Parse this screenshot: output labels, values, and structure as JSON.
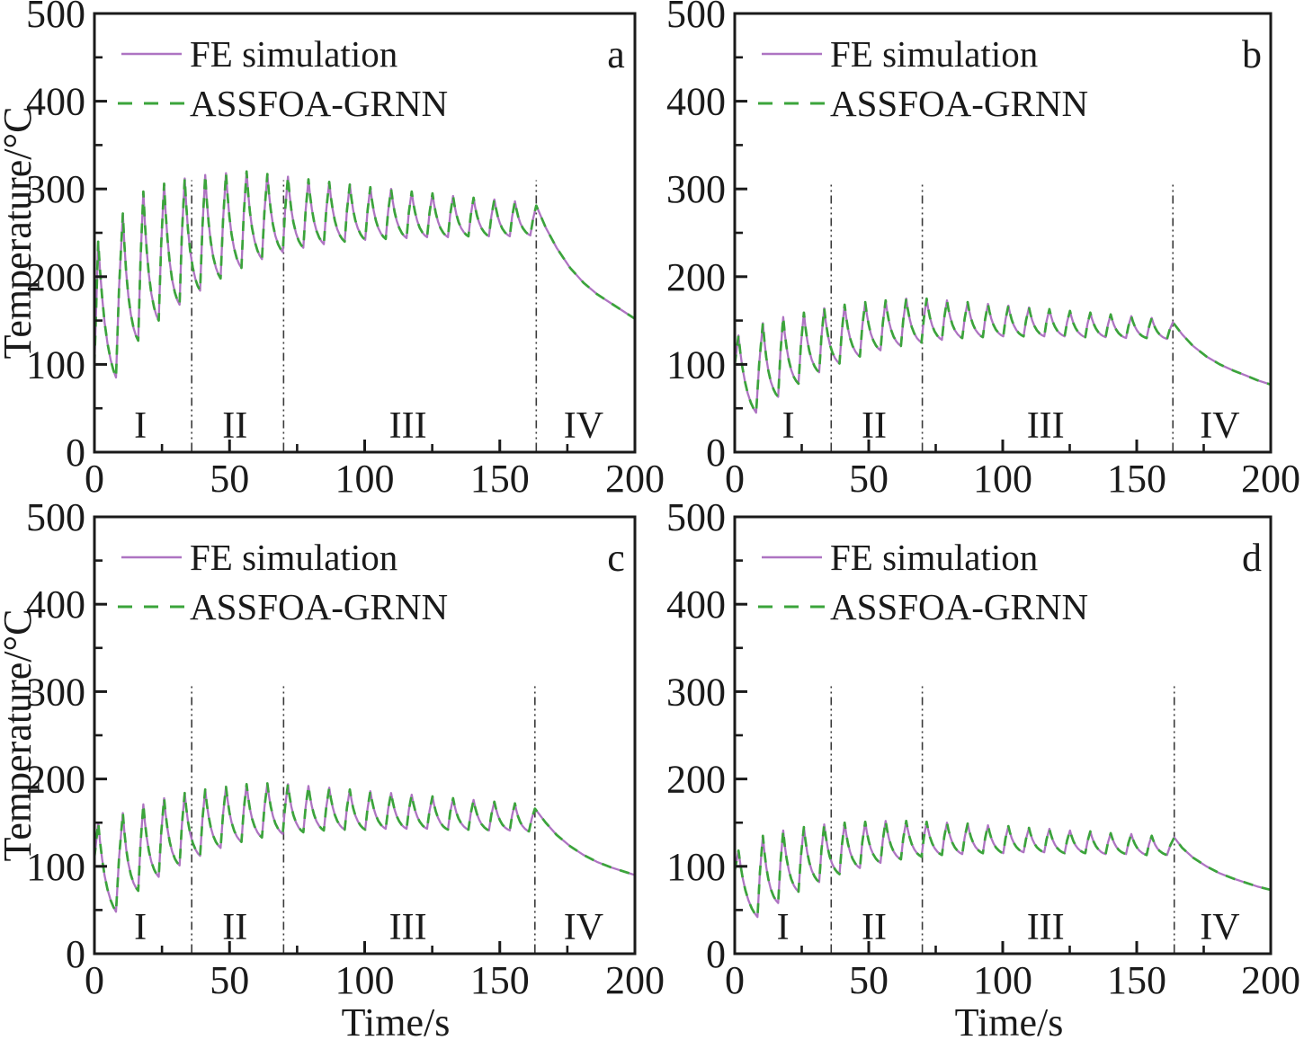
{
  "figure": {
    "description": "2x2 grid of temperature-time curves comparing FE simulation with ASSFOA-GRNN prediction",
    "xlabel": "Time/s",
    "ylabel": "Temperature/°C",
    "legend": [
      {
        "label": "FE simulation",
        "style": "solid",
        "color": "#ae74c2"
      },
      {
        "label": "ASSFOA-GRNN",
        "style": "dashed",
        "color": "#3ba43b"
      }
    ],
    "colors": {
      "fe_simulation": "#ae74c2",
      "assfoa_grnn": "#3ba43b",
      "frame": "#1a1a1a",
      "stage_boundary": "#3a3a3a"
    },
    "axes": {
      "xlim": [
        0,
        200
      ],
      "ylim": [
        0,
        500
      ],
      "xticks": [
        0,
        50,
        100,
        150,
        200
      ],
      "yticks": [
        0,
        100,
        200,
        300,
        400,
        500
      ],
      "x_minor_ticks": [
        25,
        75,
        125,
        175
      ],
      "y_minor_ticks": [
        50,
        150,
        250,
        350,
        450
      ],
      "grid": false
    },
    "shape": {
      "peak_times": [
        10.5,
        18.1,
        25.8,
        33.4,
        41.0,
        48.7,
        56.3,
        64.0,
        71.6,
        79.2,
        86.9,
        94.5,
        102.1,
        109.8,
        117.4,
        125.1,
        132.7,
        140.3,
        148.0,
        155.6
      ],
      "fall_duration_s": 5.7,
      "fall_exponent": 2.5,
      "spike_fall_exponent": 2.0
    }
  },
  "chart_data": [
    {
      "type": "line",
      "letter": "a",
      "xlabel": "",
      "ylabel": "Temperature/°C",
      "xlim": [
        0,
        200
      ],
      "ylim": [
        0,
        500
      ],
      "xticks": [
        0,
        50,
        100,
        150,
        200
      ],
      "yticks": [
        0,
        100,
        200,
        300,
        400,
        500
      ],
      "legend_position": "top-left",
      "series": [
        "FE simulation",
        "ASSFOA-GRNN"
      ],
      "series_note": "ASSFOA-GRNN dashed curve overlaps FE simulation curve",
      "regions": {
        "labels": [
          "I",
          "II",
          "III",
          "IV"
        ],
        "boundaries_s": [
          36,
          70,
          163.5
        ],
        "label_centers_s": [
          17,
          52,
          116,
          181
        ],
        "boundary_top_temp": 310
      },
      "waveform": {
        "start": [
          0,
          100
        ],
        "spike": [
          1.4,
          240
        ],
        "first_min": [
          8,
          85
        ],
        "peaks": [
          272,
          297,
          306,
          312,
          316,
          318,
          320,
          317,
          314,
          311,
          308,
          305,
          302,
          300,
          297,
          295,
          292,
          290,
          288,
          286
        ],
        "troughs": [
          127,
          150,
          168,
          184,
          198,
          210,
          220,
          228,
          233,
          237,
          240,
          242,
          243,
          244,
          245,
          245,
          246,
          246,
          246,
          247
        ],
        "final_peak": [
          163.5,
          281
        ],
        "tail": [
          [
            167,
            256
          ],
          [
            171,
            233
          ],
          [
            176,
            210
          ],
          [
            181,
            193
          ],
          [
            186,
            180
          ],
          [
            191,
            170
          ],
          [
            195,
            162
          ],
          [
            200,
            152
          ]
        ]
      }
    },
    {
      "type": "line",
      "letter": "b",
      "xlabel": "",
      "ylabel": "",
      "xlim": [
        0,
        200
      ],
      "ylim": [
        0,
        500
      ],
      "xticks": [
        0,
        50,
        100,
        150,
        200
      ],
      "yticks": [
        0,
        100,
        200,
        300,
        400,
        500
      ],
      "legend_position": "top-left",
      "series": [
        "FE simulation",
        "ASSFOA-GRNN"
      ],
      "series_note": "ASSFOA-GRNN dashed curve overlaps FE simulation curve",
      "regions": {
        "labels": [
          "I",
          "II",
          "III",
          "IV"
        ],
        "boundaries_s": [
          36,
          70,
          163.5
        ],
        "label_centers_s": [
          20,
          52,
          116,
          181
        ],
        "boundary_top_temp": 307
      },
      "waveform": {
        "start": [
          0,
          100
        ],
        "spike": [
          1.4,
          133
        ],
        "first_min": [
          8,
          45
        ],
        "peaks": [
          147,
          154,
          159,
          164,
          168,
          171,
          173,
          175,
          175,
          173,
          171,
          169,
          167,
          165,
          163,
          161,
          159,
          157,
          155,
          153
        ],
        "troughs": [
          63,
          78,
          91,
          101,
          109,
          116,
          121,
          125,
          128,
          130,
          131,
          132,
          132,
          132,
          132,
          131,
          131,
          130,
          130,
          129
        ],
        "final_peak": [
          163.5,
          148
        ],
        "tail": [
          [
            167,
            134
          ],
          [
            171,
            121
          ],
          [
            176,
            109
          ],
          [
            181,
            100
          ],
          [
            186,
            93
          ],
          [
            191,
            87
          ],
          [
            195,
            82
          ],
          [
            200,
            77
          ]
        ]
      }
    },
    {
      "type": "line",
      "letter": "c",
      "xlabel": "Time/s",
      "ylabel": "Temperature/°C",
      "xlim": [
        0,
        200
      ],
      "ylim": [
        0,
        500
      ],
      "xticks": [
        0,
        50,
        100,
        150,
        200
      ],
      "yticks": [
        0,
        100,
        200,
        300,
        400,
        500
      ],
      "legend_position": "top-left",
      "series": [
        "FE simulation",
        "ASSFOA-GRNN"
      ],
      "series_note": "ASSFOA-GRNN dashed curve overlaps FE simulation curve",
      "regions": {
        "labels": [
          "I",
          "II",
          "III",
          "IV"
        ],
        "boundaries_s": [
          36,
          70,
          163
        ],
        "label_centers_s": [
          17,
          52,
          116,
          181
        ],
        "boundary_top_temp": 308
      },
      "waveform": {
        "start": [
          0,
          110
        ],
        "spike": [
          1.4,
          150
        ],
        "first_min": [
          8,
          48
        ],
        "peaks": [
          161,
          171,
          178,
          184,
          188,
          191,
          194,
          195,
          194,
          192,
          190,
          188,
          186,
          184,
          182,
          180,
          178,
          176,
          174,
          172
        ],
        "troughs": [
          72,
          88,
          101,
          112,
          121,
          128,
          133,
          137,
          139,
          141,
          142,
          142,
          143,
          143,
          143,
          142,
          142,
          141,
          141,
          140
        ],
        "final_peak": [
          163,
          166
        ],
        "tail": [
          [
            167,
            150
          ],
          [
            171,
            136
          ],
          [
            176,
            123
          ],
          [
            181,
            113
          ],
          [
            186,
            105
          ],
          [
            191,
            99
          ],
          [
            195,
            95
          ],
          [
            200,
            90
          ]
        ]
      }
    },
    {
      "type": "line",
      "letter": "d",
      "xlabel": "Time/s",
      "ylabel": "",
      "xlim": [
        0,
        200
      ],
      "ylim": [
        0,
        500
      ],
      "xticks": [
        0,
        50,
        100,
        150,
        200
      ],
      "yticks": [
        0,
        100,
        200,
        300,
        400,
        500
      ],
      "legend_position": "top-left",
      "series": [
        "FE simulation",
        "ASSFOA-GRNN"
      ],
      "series_note": "ASSFOA-GRNN dashed curve overlaps FE simulation curve",
      "regions": {
        "labels": [
          "I",
          "II",
          "III",
          "IV"
        ],
        "boundaries_s": [
          36,
          70,
          164
        ],
        "label_centers_s": [
          18,
          52,
          116,
          181
        ],
        "boundary_top_temp": 310
      },
      "waveform": {
        "start": [
          0,
          95
        ],
        "spike": [
          1.4,
          118
        ],
        "first_min": [
          8.5,
          42
        ],
        "peaks": [
          135,
          141,
          145,
          148,
          150,
          151,
          152,
          152,
          151,
          150,
          149,
          147,
          146,
          144,
          143,
          141,
          140,
          138,
          137,
          135
        ],
        "troughs": [
          58,
          71,
          82,
          91,
          98,
          104,
          108,
          111,
          113,
          114,
          115,
          115,
          116,
          116,
          115,
          115,
          114,
          114,
          113,
          113
        ],
        "final_peak": [
          164,
          133
        ],
        "tail": [
          [
            167,
            121
          ],
          [
            171,
            110
          ],
          [
            176,
            100
          ],
          [
            181,
            92
          ],
          [
            186,
            86
          ],
          [
            191,
            81
          ],
          [
            195,
            77
          ],
          [
            200,
            73
          ]
        ]
      }
    }
  ]
}
